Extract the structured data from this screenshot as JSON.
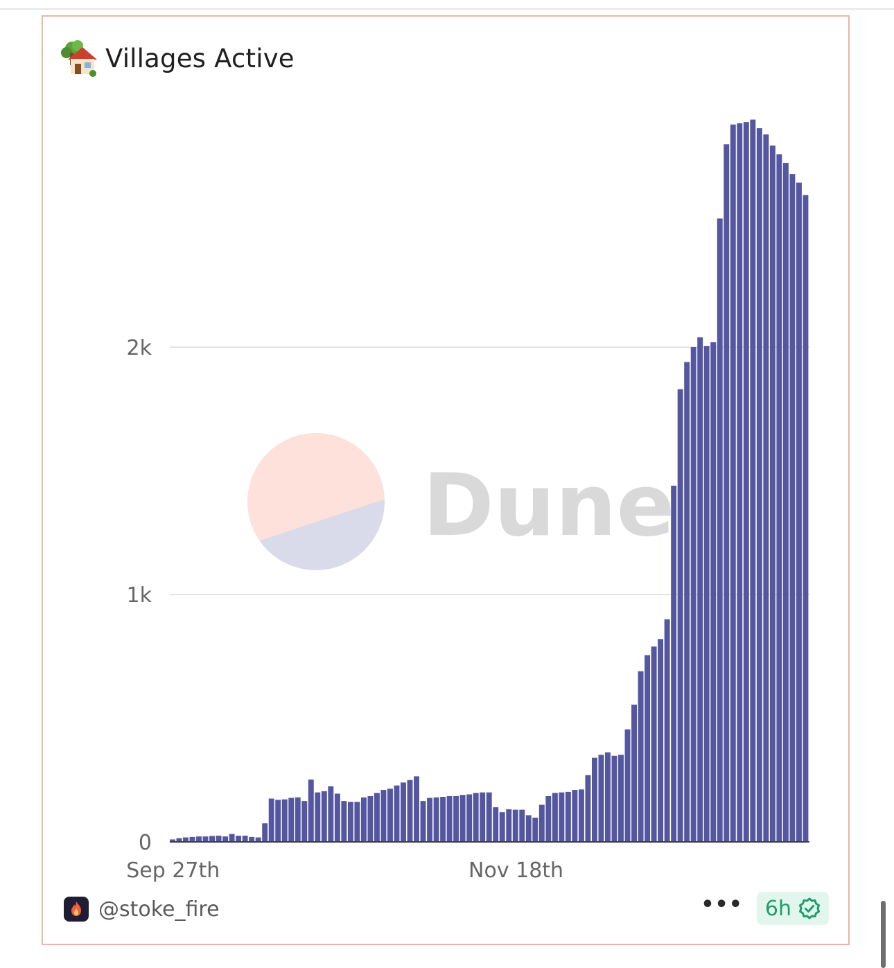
{
  "card": {
    "title": "Villages Active",
    "title_icon": "house-with-garden-icon",
    "author": "@stoke_fire",
    "avatar_icon": "flame-icon",
    "more_label": "•••",
    "refresh_label": "6h",
    "refresh_icon": "verified-check-icon",
    "watermark_text": "Dune",
    "accent_color": "#5457a0",
    "badge_color": "#1d9e6a"
  },
  "chart_data": {
    "type": "bar",
    "title": "Villages Active",
    "xlabel": "",
    "ylabel": "",
    "ylim": [
      0,
      2920
    ],
    "yticks": [
      0,
      1000,
      2000
    ],
    "ytick_labels": [
      "0",
      "1k",
      "2k"
    ],
    "xtick_labels": [
      {
        "index": 0,
        "label": "Sep 27th"
      },
      {
        "index": 52,
        "label": "Nov 18th"
      }
    ],
    "grid": true,
    "legend": "none",
    "series": [
      {
        "color": "#5457a0",
        "values": [
          10,
          15,
          18,
          20,
          22,
          22,
          24,
          25,
          22,
          32,
          25,
          25,
          20,
          18,
          75,
          175,
          170,
          172,
          178,
          180,
          165,
          252,
          200,
          205,
          225,
          195,
          165,
          162,
          162,
          180,
          185,
          198,
          210,
          215,
          228,
          240,
          250,
          265,
          165,
          178,
          180,
          182,
          185,
          185,
          190,
          192,
          198,
          200,
          200,
          140,
          120,
          132,
          130,
          130,
          108,
          98,
          150,
          185,
          198,
          200,
          202,
          210,
          212,
          270,
          340,
          352,
          362,
          348,
          352,
          455,
          555,
          690,
          755,
          790,
          820,
          900,
          1440,
          1830,
          1940,
          2000,
          2040,
          2005,
          2020,
          2520,
          2820,
          2900,
          2905,
          2910,
          2920,
          2885,
          2860,
          2815,
          2780,
          2745,
          2700,
          2665,
          2615
        ]
      }
    ]
  }
}
